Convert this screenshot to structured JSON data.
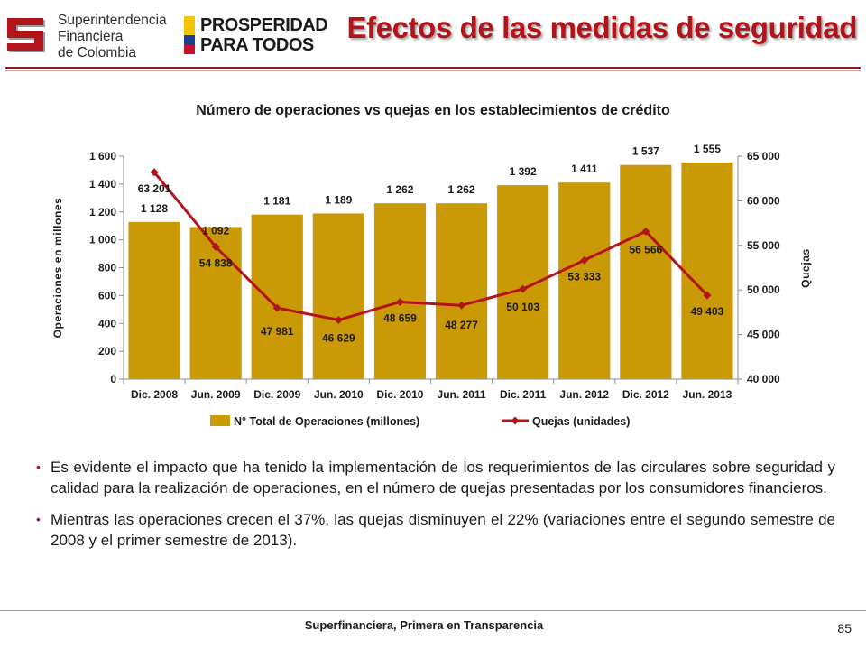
{
  "header": {
    "org_line1": "Superintendencia",
    "org_line2": "Financiera",
    "org_line3": "de Colombia",
    "gov_line1": "PROSPERIDAD",
    "gov_line2": "PARA TODOS",
    "slide_title": "Efectos de las medidas de seguridad",
    "colors": {
      "title": "#b3141a",
      "rule": "#8b1a1a"
    }
  },
  "chart_data": {
    "type": "bar",
    "title": "Número de operaciones vs quejas en los establecimientos de crédito",
    "categories": [
      "Dic. 2008",
      "Jun. 2009",
      "Dic. 2009",
      "Jun. 2010",
      "Dic. 2010",
      "Jun. 2011",
      "Dic. 2011",
      "Jun. 2012",
      "Dic. 2012",
      "Jun. 2013"
    ],
    "ylabel": "Operaciones en millones",
    "y2label": "Quejas",
    "ylim": [
      0,
      1600
    ],
    "y2lim": [
      40000,
      65000
    ],
    "yticks": [
      "0",
      "200",
      "400",
      "600",
      "800",
      "1 000",
      "1 200",
      "1 400",
      "1 600"
    ],
    "y2ticks": [
      "40 000",
      "45 000",
      "50 000",
      "55 000",
      "60 000",
      "65 000"
    ],
    "series": [
      {
        "name": "N° Total de Operaciones (millones)",
        "type": "bar",
        "axis": "left",
        "color": "#c99a06",
        "values": [
          1128,
          1092,
          1181,
          1189,
          1262,
          1262,
          1392,
          1411,
          1537,
          1555
        ],
        "labels": [
          "1 128",
          "1 092",
          "1 181",
          "1 189",
          "1 262",
          "1 262",
          "1 392",
          "1 411",
          "1 537",
          "1 555"
        ]
      },
      {
        "name": "Quejas (unidades)",
        "type": "line",
        "axis": "right",
        "color": "#b3141a",
        "values": [
          63201,
          54838,
          47981,
          46629,
          48659,
          48277,
          50103,
          53333,
          56566,
          49403
        ],
        "labels": [
          "63 201",
          "54 838",
          "47 981",
          "46 629",
          "48 659",
          "48 277",
          "50 103",
          "53 333",
          "56 566",
          "49 403"
        ]
      }
    ],
    "legend": "bottom",
    "grid": false
  },
  "bullets": [
    "Es evidente el impacto que ha tenido la implementación de los requerimientos de las circulares sobre seguridad y calidad para la realización de operaciones, en el número de quejas presentadas por los consumidores financieros.",
    "Mientras las operaciones crecen el 37%, las quejas disminuyen el 22% (variaciones entre el segundo semestre de 2008 y el primer semestre de 2013)."
  ],
  "footer": {
    "text": "Superfinanciera, Primera en Transparencia",
    "page": "85"
  }
}
